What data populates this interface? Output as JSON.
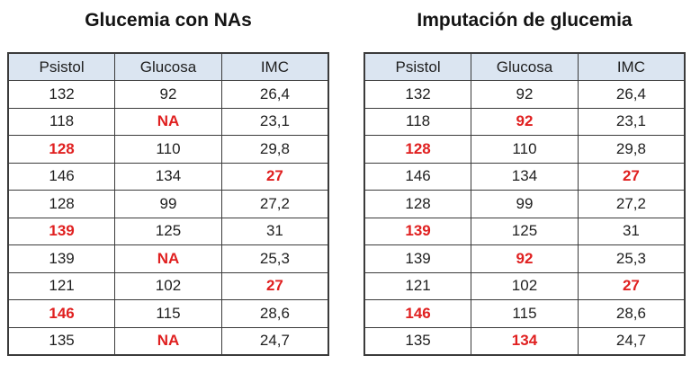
{
  "colors": {
    "background": "#ffffff",
    "header_bg": "#dbe5f1",
    "border": "#3b3b3b",
    "text": "#1f1f1f",
    "highlight": "#e02020"
  },
  "tables": [
    {
      "title": "Glucemia con NAs",
      "columns": [
        "Psistol",
        "Glucosa",
        "IMC"
      ],
      "rows": [
        {
          "cells": [
            {
              "text": "132",
              "red": false
            },
            {
              "text": "92",
              "red": false
            },
            {
              "text": "26,4",
              "red": false
            }
          ]
        },
        {
          "cells": [
            {
              "text": "118",
              "red": false
            },
            {
              "text": "NA",
              "red": true
            },
            {
              "text": "23,1",
              "red": false
            }
          ]
        },
        {
          "cells": [
            {
              "text": "128",
              "red": true
            },
            {
              "text": "110",
              "red": false
            },
            {
              "text": "29,8",
              "red": false
            }
          ]
        },
        {
          "cells": [
            {
              "text": "146",
              "red": false
            },
            {
              "text": "134",
              "red": false
            },
            {
              "text": "27",
              "red": true
            }
          ]
        },
        {
          "cells": [
            {
              "text": "128",
              "red": false
            },
            {
              "text": "99",
              "red": false
            },
            {
              "text": "27,2",
              "red": false
            }
          ]
        },
        {
          "cells": [
            {
              "text": "139",
              "red": true
            },
            {
              "text": "125",
              "red": false
            },
            {
              "text": "31",
              "red": false
            }
          ]
        },
        {
          "cells": [
            {
              "text": "139",
              "red": false
            },
            {
              "text": "NA",
              "red": true
            },
            {
              "text": "25,3",
              "red": false
            }
          ]
        },
        {
          "cells": [
            {
              "text": "121",
              "red": false
            },
            {
              "text": "102",
              "red": false
            },
            {
              "text": "27",
              "red": true
            }
          ]
        },
        {
          "cells": [
            {
              "text": "146",
              "red": true
            },
            {
              "text": "115",
              "red": false
            },
            {
              "text": "28,6",
              "red": false
            }
          ]
        },
        {
          "cells": [
            {
              "text": "135",
              "red": false
            },
            {
              "text": "NA",
              "red": true
            },
            {
              "text": "24,7",
              "red": false
            }
          ]
        }
      ]
    },
    {
      "title": "Imputación de glucemia",
      "columns": [
        "Psistol",
        "Glucosa",
        "IMC"
      ],
      "rows": [
        {
          "cells": [
            {
              "text": "132",
              "red": false
            },
            {
              "text": "92",
              "red": false
            },
            {
              "text": "26,4",
              "red": false
            }
          ]
        },
        {
          "cells": [
            {
              "text": "118",
              "red": false
            },
            {
              "text": "92",
              "red": true
            },
            {
              "text": "23,1",
              "red": false
            }
          ]
        },
        {
          "cells": [
            {
              "text": "128",
              "red": true
            },
            {
              "text": "110",
              "red": false
            },
            {
              "text": "29,8",
              "red": false
            }
          ]
        },
        {
          "cells": [
            {
              "text": "146",
              "red": false
            },
            {
              "text": "134",
              "red": false
            },
            {
              "text": "27",
              "red": true
            }
          ]
        },
        {
          "cells": [
            {
              "text": "128",
              "red": false
            },
            {
              "text": "99",
              "red": false
            },
            {
              "text": "27,2",
              "red": false
            }
          ]
        },
        {
          "cells": [
            {
              "text": "139",
              "red": true
            },
            {
              "text": "125",
              "red": false
            },
            {
              "text": "31",
              "red": false
            }
          ]
        },
        {
          "cells": [
            {
              "text": "139",
              "red": false
            },
            {
              "text": "92",
              "red": true
            },
            {
              "text": "25,3",
              "red": false
            }
          ]
        },
        {
          "cells": [
            {
              "text": "121",
              "red": false
            },
            {
              "text": "102",
              "red": false
            },
            {
              "text": "27",
              "red": true
            }
          ]
        },
        {
          "cells": [
            {
              "text": "146",
              "red": true
            },
            {
              "text": "115",
              "red": false
            },
            {
              "text": "28,6",
              "red": false
            }
          ]
        },
        {
          "cells": [
            {
              "text": "135",
              "red": false
            },
            {
              "text": "134",
              "red": true
            },
            {
              "text": "24,7",
              "red": false
            }
          ]
        }
      ]
    }
  ],
  "chart_data": [
    {
      "type": "table",
      "title": "Glucemia con NAs",
      "columns": [
        "Psistol",
        "Glucosa",
        "IMC"
      ],
      "rows": [
        [
          "132",
          "92",
          "26,4"
        ],
        [
          "118",
          "NA",
          "23,1"
        ],
        [
          "128",
          "110",
          "29,8"
        ],
        [
          "146",
          "134",
          "27"
        ],
        [
          "128",
          "99",
          "27,2"
        ],
        [
          "139",
          "125",
          "31"
        ],
        [
          "139",
          "NA",
          "25,3"
        ],
        [
          "121",
          "102",
          "27"
        ],
        [
          "146",
          "115",
          "28,6"
        ],
        [
          "135",
          "NA",
          "24,7"
        ]
      ]
    },
    {
      "type": "table",
      "title": "Imputación de glucemia",
      "columns": [
        "Psistol",
        "Glucosa",
        "IMC"
      ],
      "rows": [
        [
          "132",
          "92",
          "26,4"
        ],
        [
          "118",
          "92",
          "23,1"
        ],
        [
          "128",
          "110",
          "29,8"
        ],
        [
          "146",
          "134",
          "27"
        ],
        [
          "128",
          "99",
          "27,2"
        ],
        [
          "139",
          "125",
          "31"
        ],
        [
          "139",
          "92",
          "25,3"
        ],
        [
          "121",
          "102",
          "27"
        ],
        [
          "146",
          "115",
          "28,6"
        ],
        [
          "135",
          "134",
          "24,7"
        ]
      ]
    }
  ]
}
